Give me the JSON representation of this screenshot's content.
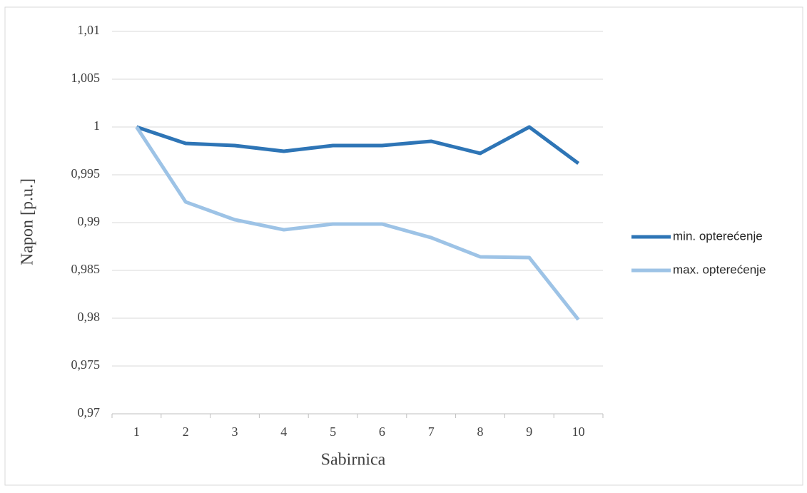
{
  "chart_data": {
    "type": "line",
    "x_label": "Sabirnica",
    "y_label": "Napon [p.u.]",
    "categories": [
      "1",
      "2",
      "3",
      "4",
      "5",
      "6",
      "7",
      "8",
      "9",
      "10"
    ],
    "series": [
      {
        "name": "min. opterećenje",
        "color": "#2e75b6",
        "values": [
          1.0,
          0.99828,
          0.99806,
          0.99746,
          0.99806,
          0.99806,
          0.99851,
          0.99724,
          1.0,
          0.99619
        ]
      },
      {
        "name": "max. opterećenje",
        "color": "#9dc3e6",
        "values": [
          1.0,
          0.99216,
          0.9903,
          0.98925,
          0.98985,
          0.98985,
          0.98843,
          0.98642,
          0.98634,
          0.97985
        ]
      }
    ],
    "ylim": [
      0.97,
      1.01
    ],
    "yticks": [
      {
        "value": 0.97,
        "label": "0,97"
      },
      {
        "value": 0.975,
        "label": "0,975"
      },
      {
        "value": 0.98,
        "label": "0,98"
      },
      {
        "value": 0.985,
        "label": "0,985"
      },
      {
        "value": 0.99,
        "label": "0,99"
      },
      {
        "value": 0.995,
        "label": "0,995"
      },
      1,
      {
        "value": 1.005,
        "label": "1,005"
      },
      {
        "value": 1.01,
        "label": "1,01"
      }
    ],
    "grid": true,
    "legend": "right"
  }
}
